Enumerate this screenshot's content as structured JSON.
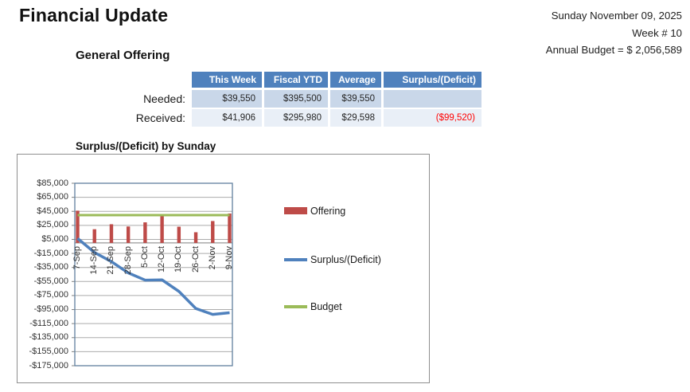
{
  "page": {
    "title": "Financial Update"
  },
  "header_right": {
    "date": "Sunday November 09, 2025",
    "week": "Week # 10",
    "annual_budget": "Annual Budget = $ 2,056,589"
  },
  "offering_table": {
    "title": "General Offering",
    "headers": [
      "This Week",
      "Fiscal YTD",
      "Average",
      "Surplus/(Deficit)"
    ],
    "rows": [
      {
        "label": "Needed:",
        "this_week": "$39,550",
        "fiscal_ytd": "$395,500",
        "average": "$39,550",
        "surplus": ""
      },
      {
        "label": "Received:",
        "this_week": "$41,906",
        "fiscal_ytd": "$295,980",
        "average": "$29,598",
        "surplus": "($99,520)"
      }
    ]
  },
  "chart_data": {
    "type": "combo",
    "title": "Surplus/(Deficit) by Sunday",
    "categories": [
      "7-Sep",
      "14-Sep",
      "21-Sep",
      "28-Sep",
      "5-Oct",
      "12-Oct",
      "19-Oct",
      "26-Oct",
      "2-Nov",
      "9-Nov"
    ],
    "series": [
      {
        "name": "Offering",
        "type": "bar",
        "color": "#BE4B48",
        "values": [
          45930,
          19500,
          26600,
          23400,
          29300,
          39900,
          23100,
          15200,
          31144,
          41906
        ]
      },
      {
        "name": "Surplus/(Deficit)",
        "type": "line",
        "color": "#4F81BD",
        "values": [
          6380,
          -13670,
          -26620,
          -42770,
          -53020,
          -52670,
          -69120,
          -93470,
          -101876,
          -99520
        ]
      },
      {
        "name": "Budget",
        "type": "line",
        "color": "#9BBB59",
        "values": [
          39550,
          39550,
          39550,
          39550,
          39550,
          39550,
          39550,
          39550,
          39550,
          39550
        ]
      }
    ],
    "ylim": [
      -175000,
      85000
    ],
    "ytick_step": 20000,
    "ytick_labels": [
      "$85,000",
      "$65,000",
      "$45,000",
      "$25,000",
      "$5,000",
      "-$15,000",
      "-$35,000",
      "-$55,000",
      "-$75,000",
      "-$95,000",
      "-$115,000",
      "-$135,000",
      "-$155,000",
      "-$175,000"
    ],
    "xlabel": "",
    "ylabel": "",
    "grid": true,
    "legend_position": "right"
  },
  "colors": {
    "table_header_blue": "#4F81BD",
    "table_row_light": "#C9D7E9",
    "table_row_lighter": "#E9EFF7",
    "deficit_red": "#FF0000",
    "bar_red": "#BE4B48",
    "line_blue": "#4F81BD",
    "budget_green": "#9BBB59",
    "gridline_gray": "#ABABAB",
    "plot_border": "#60809F"
  }
}
